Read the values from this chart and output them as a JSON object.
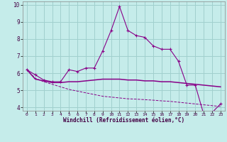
{
  "xlabel": "Windchill (Refroidissement éolien,°C)",
  "bg_color": "#c5ecea",
  "grid_color": "#a0d0ce",
  "line_color": "#880088",
  "xlim": [
    -0.5,
    23.5
  ],
  "ylim": [
    3.8,
    10.2
  ],
  "yticks": [
    4,
    5,
    6,
    7,
    8,
    9,
    10
  ],
  "xticks": [
    0,
    1,
    2,
    3,
    4,
    5,
    6,
    7,
    8,
    9,
    10,
    11,
    12,
    13,
    14,
    15,
    16,
    17,
    18,
    19,
    20,
    21,
    22,
    23
  ],
  "line1_x": [
    0,
    1,
    2,
    3,
    4,
    5,
    6,
    7,
    8,
    9,
    10,
    11,
    12,
    13,
    14,
    15,
    16,
    17,
    18,
    19,
    20,
    21,
    22,
    23
  ],
  "line1_y": [
    6.2,
    5.9,
    5.6,
    5.5,
    5.5,
    6.2,
    6.1,
    6.3,
    6.3,
    7.3,
    8.5,
    9.9,
    8.5,
    8.2,
    8.1,
    7.6,
    7.4,
    7.4,
    6.7,
    5.3,
    5.3,
    3.6,
    3.7,
    4.2
  ],
  "line2_x": [
    0,
    1,
    2,
    3,
    4,
    5,
    6,
    7,
    8,
    9,
    10,
    11,
    12,
    13,
    14,
    15,
    16,
    17,
    18,
    19,
    20,
    21,
    22,
    23
  ],
  "line2_y": [
    6.2,
    5.65,
    5.55,
    5.45,
    5.45,
    5.5,
    5.5,
    5.55,
    5.6,
    5.65,
    5.65,
    5.65,
    5.6,
    5.6,
    5.55,
    5.55,
    5.5,
    5.5,
    5.45,
    5.4,
    5.35,
    5.3,
    5.25,
    5.2
  ],
  "line3_x": [
    0,
    1,
    2,
    3,
    4,
    5,
    6,
    7,
    8,
    9,
    10,
    11,
    12,
    13,
    14,
    15,
    16,
    17,
    18,
    19,
    20,
    21,
    22,
    23
  ],
  "line3_y": [
    6.2,
    5.7,
    5.5,
    5.35,
    5.2,
    5.05,
    4.95,
    4.85,
    4.75,
    4.65,
    4.6,
    4.55,
    4.5,
    4.48,
    4.45,
    4.42,
    4.38,
    4.35,
    4.3,
    4.25,
    4.2,
    4.15,
    4.1,
    4.05
  ]
}
